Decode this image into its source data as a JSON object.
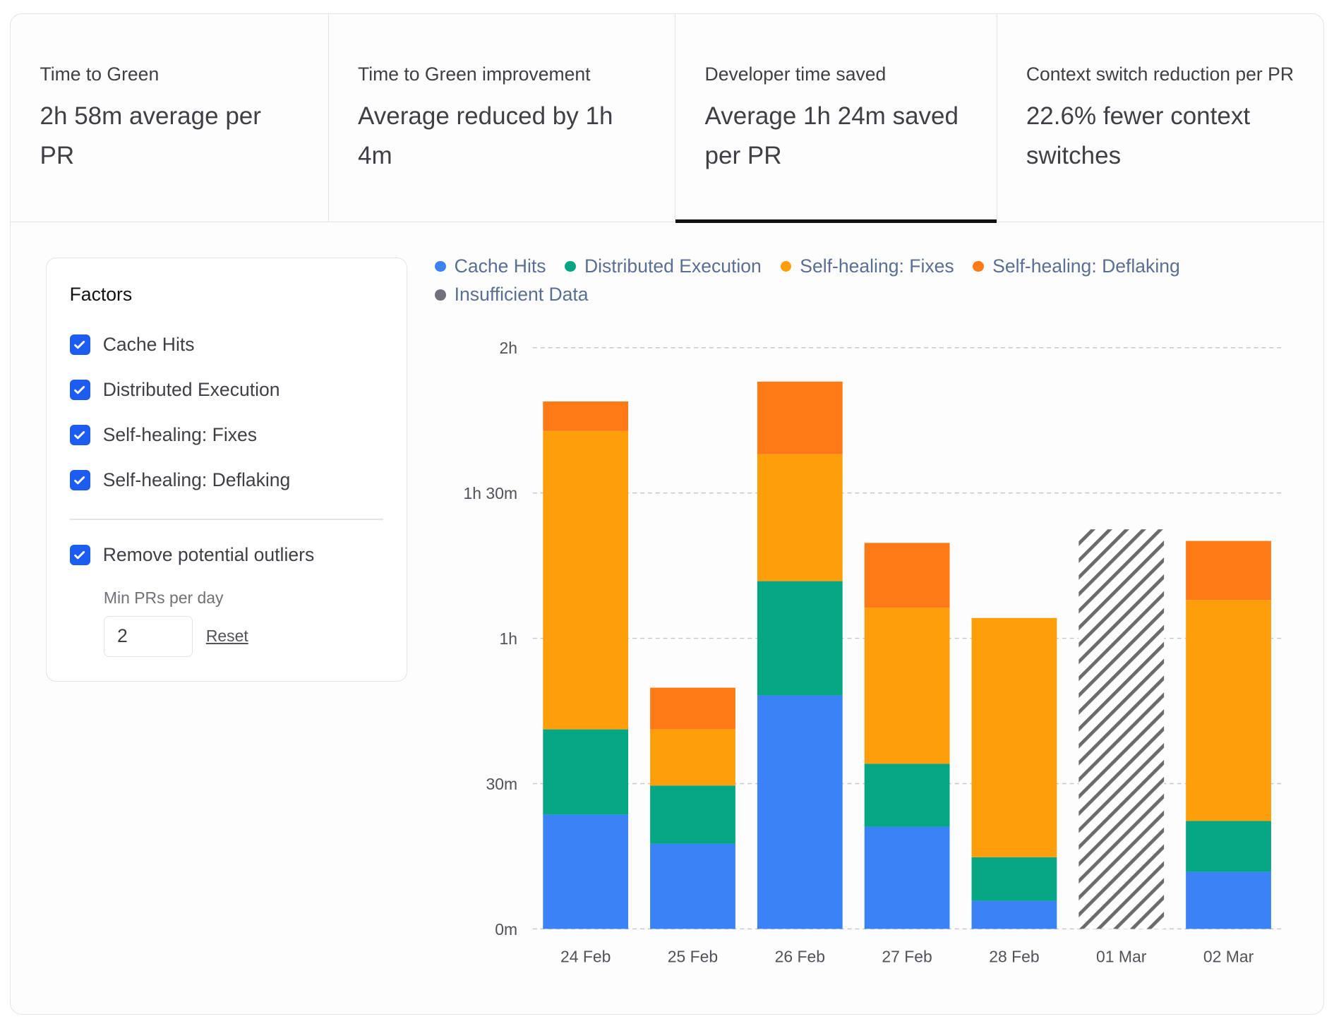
{
  "tiles": [
    {
      "label": "Time to Green",
      "value": "2h 58m average per PR",
      "active": false
    },
    {
      "label": "Time to Green improvement",
      "value": "Average reduced by 1h 4m",
      "active": false
    },
    {
      "label": "Developer time saved",
      "value": "Average 1h 24m saved per PR",
      "active": true
    },
    {
      "label": "Context switch reduction per PR",
      "value": "22.6% fewer context switches",
      "active": false
    }
  ],
  "factors": {
    "title": "Factors",
    "items": [
      {
        "label": "Cache Hits",
        "checked": true
      },
      {
        "label": "Distributed Execution",
        "checked": true
      },
      {
        "label": "Self-healing: Fixes",
        "checked": true
      },
      {
        "label": "Self-healing: Deflaking",
        "checked": true
      }
    ],
    "outliers": {
      "label": "Remove potential outliers",
      "checked": true
    },
    "min_prs_label": "Min PRs per day",
    "min_prs_value": "2",
    "reset_label": "Reset"
  },
  "chart_data": {
    "type": "bar",
    "stacked": true,
    "categories": [
      "24 Feb",
      "25 Feb",
      "26 Feb",
      "27 Feb",
      "28 Feb",
      "01 Mar",
      "02 Mar"
    ],
    "series": [
      {
        "name": "Cache Hits",
        "color": "#3b82f6",
        "values": [
          23.6,
          17.6,
          48.2,
          21.1,
          5.8,
          null,
          11.8
        ]
      },
      {
        "name": "Distributed Execution",
        "color": "#05a683",
        "values": [
          17.6,
          12.0,
          23.6,
          13.0,
          9.0,
          null,
          10.5
        ]
      },
      {
        "name": "Self-healing: Fixes",
        "color": "#fe9e0a",
        "values": [
          61.6,
          11.6,
          26.2,
          32.2,
          49.4,
          null,
          45.6
        ]
      },
      {
        "name": "Self-healing: Deflaking",
        "color": "#fd7a16",
        "values": [
          6.1,
          8.6,
          15.0,
          13.4,
          0,
          null,
          12.2
        ]
      },
      {
        "name": "Insufficient Data",
        "color": "#71717a",
        "values": [
          null,
          null,
          null,
          null,
          null,
          82.5,
          null
        ]
      }
    ],
    "yunit": "minutes",
    "ylim": [
      0,
      120
    ],
    "yticks": [
      {
        "value": 0,
        "label": "0m"
      },
      {
        "value": 30,
        "label": "30m"
      },
      {
        "value": 60,
        "label": "1h"
      },
      {
        "value": 90,
        "label": "1h 30m"
      },
      {
        "value": 120,
        "label": "2h"
      }
    ],
    "grid": true,
    "legend_position": "top"
  }
}
